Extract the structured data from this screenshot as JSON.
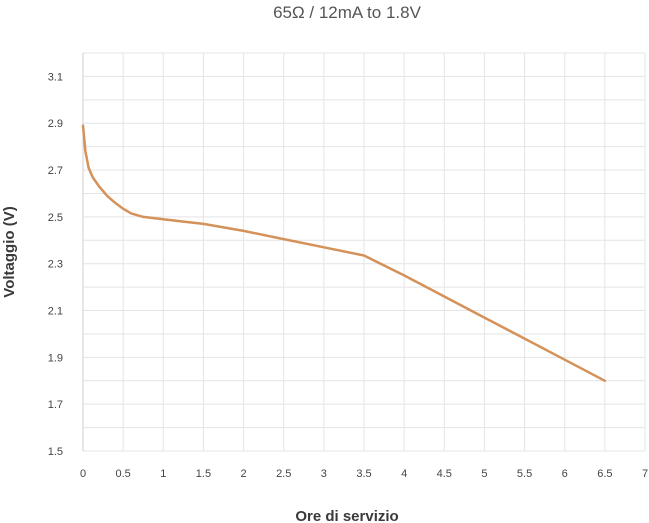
{
  "chart_data": {
    "type": "line",
    "title": "65Ω / 12mA to 1.8V",
    "xlabel": "Ore di servizio",
    "ylabel": "Voltaggio (V)",
    "xlim": [
      0,
      7
    ],
    "ylim": [
      1.5,
      3.2
    ],
    "x_ticks": [
      0,
      0.5,
      1,
      1.5,
      2,
      2.5,
      3,
      3.5,
      4,
      4.5,
      5,
      5.5,
      6,
      6.5,
      7
    ],
    "x_tick_labels": [
      "0",
      "0.5",
      "1",
      "1.5",
      "2",
      "2.5",
      "3",
      "3.5",
      "4",
      "4.5",
      "5",
      "5.5",
      "6",
      "6.5",
      "7"
    ],
    "y_ticks": [
      1.5,
      1.7,
      1.9,
      2.1,
      2.3,
      2.5,
      2.7,
      2.9,
      3.1
    ],
    "y_tick_labels": [
      "1.5",
      "1.7",
      "1.9",
      "2.1",
      "2.3",
      "2.5",
      "2.7",
      "2.9",
      "3.1"
    ],
    "grid": true,
    "line_color": "#d4925a",
    "series": [
      {
        "x": [
          0,
          0.03,
          0.07,
          0.12,
          0.2,
          0.3,
          0.4,
          0.5,
          0.6,
          0.75,
          1.0,
          1.25,
          1.5,
          2.0,
          2.5,
          3.0,
          3.5,
          4.0,
          4.5,
          5.0,
          5.5,
          6.0,
          6.5
        ],
        "y": [
          2.89,
          2.78,
          2.71,
          2.67,
          2.63,
          2.59,
          2.56,
          2.535,
          2.515,
          2.5,
          2.49,
          2.48,
          2.47,
          2.44,
          2.405,
          2.37,
          2.335,
          2.25,
          2.16,
          2.07,
          1.98,
          1.89,
          1.8
        ]
      }
    ]
  }
}
